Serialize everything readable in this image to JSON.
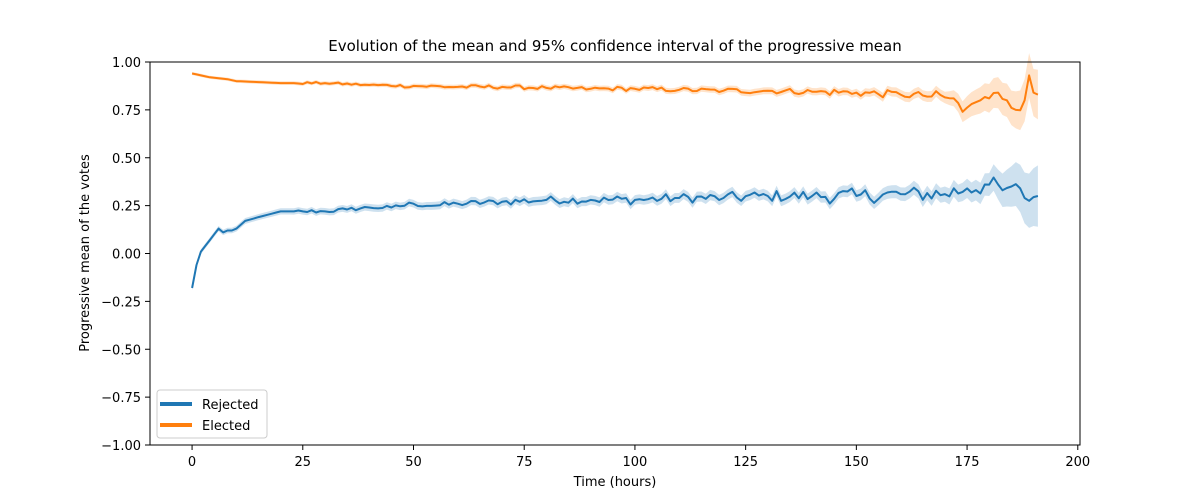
{
  "chart_data": {
    "type": "line",
    "title": "Evolution of the mean and 95% confidence interval of the progressive mean",
    "xlabel": "Time (hours)",
    "ylabel": "Progressive mean of the votes",
    "xlim": [
      -9.5,
      200.5
    ],
    "ylim": [
      -1.0,
      1.0
    ],
    "x_ticks": [
      0,
      25,
      50,
      75,
      100,
      125,
      150,
      175,
      200
    ],
    "x_tick_labels": [
      "0",
      "25",
      "50",
      "75",
      "100",
      "125",
      "150",
      "175",
      "200"
    ],
    "y_ticks": [
      1.0,
      0.75,
      0.5,
      0.25,
      0.0,
      -0.25,
      -0.5,
      -0.75,
      -1.0
    ],
    "y_tick_labels": [
      "1.00",
      "0.75",
      "0.50",
      "0.25",
      "0.00",
      "−0.25",
      "−0.50",
      "−0.75",
      "−1.00"
    ],
    "grid": false,
    "legend": {
      "placement": "lower-left",
      "entries": [
        "Rejected",
        "Elected"
      ]
    },
    "band": "95% confidence interval",
    "series": [
      {
        "name": "Rejected",
        "color": "#1f77b4",
        "x_range": [
          0,
          191
        ],
        "anchors": [
          [
            0,
            -0.18
          ],
          [
            1,
            -0.06
          ],
          [
            2,
            0.01
          ],
          [
            3,
            0.04
          ],
          [
            4,
            0.07
          ],
          [
            5,
            0.1
          ],
          [
            6,
            0.13
          ],
          [
            7,
            0.11
          ],
          [
            8,
            0.12
          ],
          [
            9,
            0.12
          ],
          [
            10,
            0.13
          ],
          [
            12,
            0.17
          ],
          [
            15,
            0.19
          ],
          [
            20,
            0.22
          ],
          [
            25,
            0.22
          ],
          [
            30,
            0.22
          ],
          [
            35,
            0.23
          ],
          [
            40,
            0.24
          ],
          [
            45,
            0.24
          ],
          [
            50,
            0.26
          ],
          [
            55,
            0.25
          ],
          [
            60,
            0.26
          ],
          [
            70,
            0.27
          ],
          [
            80,
            0.28
          ],
          [
            90,
            0.28
          ],
          [
            100,
            0.28
          ],
          [
            110,
            0.29
          ],
          [
            120,
            0.29
          ],
          [
            130,
            0.3
          ],
          [
            140,
            0.3
          ],
          [
            150,
            0.3
          ],
          [
            160,
            0.31
          ],
          [
            170,
            0.31
          ],
          [
            175,
            0.34
          ],
          [
            180,
            0.36
          ],
          [
            183,
            0.33
          ],
          [
            185,
            0.35
          ],
          [
            188,
            0.29
          ],
          [
            191,
            0.3
          ]
        ],
        "band_halfwidth": [
          [
            0,
            0.012
          ],
          [
            10,
            0.015
          ],
          [
            50,
            0.02
          ],
          [
            100,
            0.025
          ],
          [
            150,
            0.03
          ],
          [
            170,
            0.04
          ],
          [
            180,
            0.06
          ],
          [
            191,
            0.16
          ]
        ],
        "noise": [
          0.0,
          0.01,
          0.015,
          0.02,
          0.025,
          0.03,
          0.04,
          0.05
        ]
      },
      {
        "name": "Elected",
        "color": "#ff7f0e",
        "x_range": [
          0,
          191
        ],
        "anchors": [
          [
            0,
            0.94
          ],
          [
            2,
            0.93
          ],
          [
            4,
            0.92
          ],
          [
            8,
            0.91
          ],
          [
            10,
            0.9
          ],
          [
            20,
            0.89
          ],
          [
            30,
            0.89
          ],
          [
            40,
            0.88
          ],
          [
            50,
            0.875
          ],
          [
            60,
            0.87
          ],
          [
            70,
            0.87
          ],
          [
            80,
            0.865
          ],
          [
            90,
            0.86
          ],
          [
            100,
            0.86
          ],
          [
            110,
            0.855
          ],
          [
            120,
            0.85
          ],
          [
            130,
            0.85
          ],
          [
            140,
            0.845
          ],
          [
            150,
            0.84
          ],
          [
            160,
            0.83
          ],
          [
            165,
            0.825
          ],
          [
            170,
            0.815
          ],
          [
            172,
            0.81
          ],
          [
            174,
            0.74
          ],
          [
            176,
            0.78
          ],
          [
            178,
            0.8
          ],
          [
            180,
            0.81
          ],
          [
            182,
            0.84
          ],
          [
            184,
            0.8
          ],
          [
            186,
            0.75
          ],
          [
            188,
            0.8
          ],
          [
            189,
            0.93
          ],
          [
            190,
            0.84
          ],
          [
            191,
            0.83
          ]
        ],
        "band_halfwidth": [
          [
            0,
            0.008
          ],
          [
            50,
            0.012
          ],
          [
            100,
            0.015
          ],
          [
            150,
            0.02
          ],
          [
            170,
            0.03
          ],
          [
            175,
            0.06
          ],
          [
            185,
            0.09
          ],
          [
            191,
            0.13
          ]
        ],
        "noise": [
          0.0,
          0.006,
          0.01,
          0.01,
          0.012,
          0.015,
          0.02,
          0.03
        ]
      }
    ]
  }
}
